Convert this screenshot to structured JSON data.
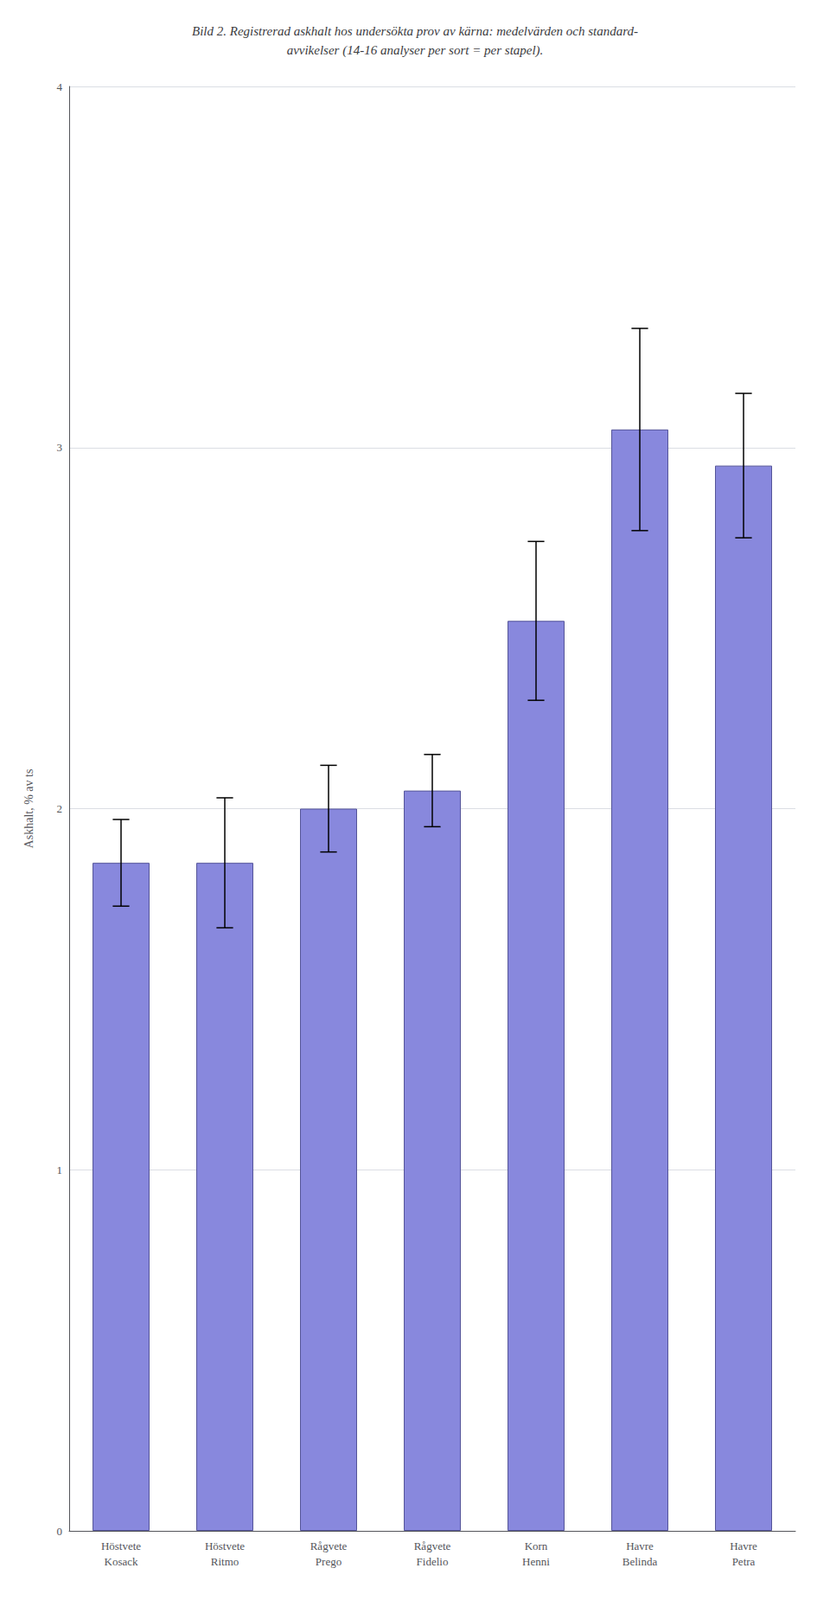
{
  "chart_data": {
    "type": "bar",
    "title": "Bild 2. Registrerad askhalt hos undersökta prov av kärna: medelvärden och standard-\navvikelser (14-16 analyser per sort = per stapel).",
    "ylabel": "Askhalt, % av ts",
    "categories": [
      "Höstvete\nKosack",
      "Höstvete\nRitmo",
      "Rågvete\nPrego",
      "Rågvete\nFidelio",
      "Korn\nHenni",
      "Havre\nBelinda",
      "Havre\nPetra"
    ],
    "values": [
      1.85,
      1.85,
      2.0,
      2.05,
      2.52,
      3.05,
      2.95
    ],
    "errors": [
      0.12,
      0.18,
      0.12,
      0.1,
      0.22,
      0.28,
      0.2
    ],
    "color": "#8888DD",
    "ylim": [
      0,
      4
    ],
    "yticks": [
      0,
      1,
      2,
      3,
      4
    ],
    "grid": true
  }
}
